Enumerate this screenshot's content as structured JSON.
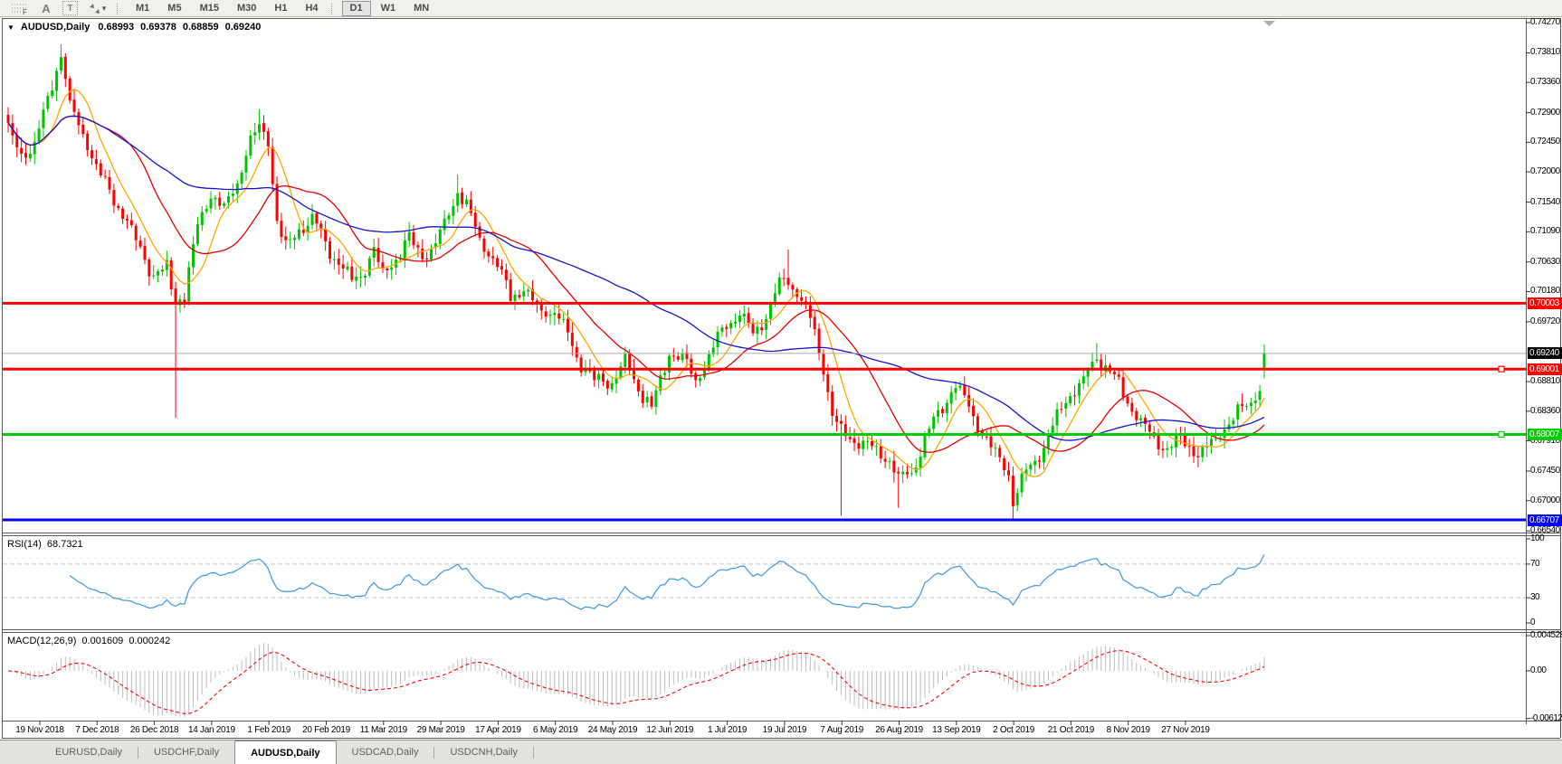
{
  "toolbar": {
    "tools": [
      {
        "name": "fibonacci-tool",
        "glyph": "F"
      },
      {
        "name": "text-label-tool",
        "glyph": "A"
      },
      {
        "name": "text-tool",
        "glyph": "T"
      },
      {
        "name": "arrows-tool",
        "glyph": "arrows"
      }
    ],
    "timeframes": [
      {
        "label": "M1",
        "active": false
      },
      {
        "label": "M5",
        "active": false
      },
      {
        "label": "M15",
        "active": false
      },
      {
        "label": "M30",
        "active": false
      },
      {
        "label": "H1",
        "active": false
      },
      {
        "label": "H4",
        "active": false
      },
      {
        "label": "D1",
        "active": true
      },
      {
        "label": "W1",
        "active": false
      },
      {
        "label": "MN",
        "active": false
      }
    ]
  },
  "chart_header": {
    "collapse_glyph": "▼",
    "symbol": "AUDUSD,Daily",
    "open": "0.68993",
    "high": "0.69378",
    "low": "0.68859",
    "close": "0.69240"
  },
  "price_axis": {
    "labels": [
      "0.74270",
      "0.73810",
      "0.73360",
      "0.72900",
      "0.72450",
      "0.72000",
      "0.71540",
      "0.71090",
      "0.70630",
      "0.70180",
      "0.69720",
      "0.68810",
      "0.68360",
      "0.67910",
      "0.67450",
      "0.67000",
      "0.66540"
    ]
  },
  "date_axis": {
    "labels": [
      "19 Nov 2018",
      "7 Dec 2018",
      "26 Dec 2018",
      "14 Jan 2019",
      "1 Feb 2019",
      "20 Feb 2019",
      "11 Mar 2019",
      "29 Mar 2019",
      "17 Apr 2019",
      "6 May 2019",
      "24 May 2019",
      "12 Jun 2019",
      "1 Jul 2019",
      "19 Jul 2019",
      "7 Aug 2019",
      "26 Aug 2019",
      "13 Sep 2019",
      "2 Oct 2019",
      "21 Oct 2019",
      "8 Nov 2019",
      "27 Nov 2019"
    ]
  },
  "badges": [
    {
      "name": "resistance-upper",
      "label": "0.70003",
      "price": 0.70003,
      "color": "#FF0000"
    },
    {
      "name": "current-price",
      "label": "0.69240",
      "price": 0.6924,
      "color": "#000000"
    },
    {
      "name": "resistance-lower",
      "label": "0.69001",
      "price": 0.69001,
      "color": "#FF0000"
    },
    {
      "name": "support-green",
      "label": "0.68007",
      "price": 0.68007,
      "color": "#00CC00"
    },
    {
      "name": "support-blue",
      "label": "0.66707",
      "price": 0.66707,
      "color": "#0000FF"
    }
  ],
  "rsi_panel": {
    "name": "RSI(14)",
    "value": "68.7321",
    "scale": [
      {
        "label": "100",
        "v": 100
      },
      {
        "label": "70",
        "v": 70
      },
      {
        "label": "30",
        "v": 30
      },
      {
        "label": "0",
        "v": 0
      }
    ],
    "levels": [
      70,
      30
    ]
  },
  "macd_panel": {
    "name": "MACD(12,26,9)",
    "value_main": "0.001609",
    "value_signal": "0.000242",
    "scale": [
      {
        "label": "0.004528",
        "v": 0.004528
      },
      {
        "label": "0.00",
        "v": 0
      },
      {
        "label": "-0.00612",
        "v": -0.00612
      }
    ]
  },
  "tabs": [
    {
      "label": "EURUSD,Daily",
      "active": false
    },
    {
      "label": "USDCHF,Daily",
      "active": false
    },
    {
      "label": "AUDUSD,Daily",
      "active": true
    },
    {
      "label": "USDCAD,Daily",
      "active": false
    },
    {
      "label": "USDCNH,Daily",
      "active": false
    }
  ],
  "chart_data": {
    "type": "candlestick",
    "symbol": "AUDUSD",
    "timeframe": "Daily",
    "bars": 286,
    "price_range": [
      0.6654,
      0.7427
    ],
    "anchors": [
      [
        0,
        0.7262
      ],
      [
        3,
        0.7228
      ],
      [
        6,
        0.7235
      ],
      [
        9,
        0.731
      ],
      [
        12,
        0.738
      ],
      [
        14,
        0.7298
      ],
      [
        17,
        0.7262
      ],
      [
        20,
        0.7205
      ],
      [
        23,
        0.7172
      ],
      [
        26,
        0.7135
      ],
      [
        30,
        0.7085
      ],
      [
        33,
        0.7042
      ],
      [
        36,
        0.7052
      ],
      [
        38,
        0.7005
      ],
      [
        40,
        0.7012
      ],
      [
        43,
        0.7118
      ],
      [
        46,
        0.7168
      ],
      [
        49,
        0.7142
      ],
      [
        52,
        0.7188
      ],
      [
        55,
        0.7248
      ],
      [
        57,
        0.7268
      ],
      [
        59,
        0.7248
      ],
      [
        61,
        0.7125
      ],
      [
        63,
        0.7082
      ],
      [
        66,
        0.7112
      ],
      [
        69,
        0.7128
      ],
      [
        72,
        0.7092
      ],
      [
        75,
        0.7062
      ],
      [
        78,
        0.7032
      ],
      [
        81,
        0.7052
      ],
      [
        83,
        0.7078
      ],
      [
        85,
        0.7045
      ],
      [
        88,
        0.7068
      ],
      [
        91,
        0.7098
      ],
      [
        94,
        0.7072
      ],
      [
        97,
        0.7088
      ],
      [
        100,
        0.7138
      ],
      [
        102,
        0.7172
      ],
      [
        104,
        0.7148
      ],
      [
        107,
        0.7098
      ],
      [
        111,
        0.7058
      ],
      [
        114,
        0.7012
      ],
      [
        117,
        0.7022
      ],
      [
        120,
        0.6992
      ],
      [
        124,
        0.6988
      ],
      [
        127,
        0.6952
      ],
      [
        130,
        0.6905
      ],
      [
        133,
        0.6882
      ],
      [
        137,
        0.6882
      ],
      [
        140,
        0.6912
      ],
      [
        143,
        0.6872
      ],
      [
        146,
        0.6842
      ],
      [
        149,
        0.6902
      ],
      [
        150,
        0.6928
      ],
      [
        153,
        0.6918
      ],
      [
        156,
        0.6882
      ],
      [
        159,
        0.6922
      ],
      [
        162,
        0.6958
      ],
      [
        163,
        0.6968
      ],
      [
        166,
        0.6988
      ],
      [
        169,
        0.6952
      ],
      [
        172,
        0.6982
      ],
      [
        175,
        0.7028
      ],
      [
        176,
        0.7038
      ],
      [
        179,
        0.7018
      ],
      [
        182,
        0.6978
      ],
      [
        185,
        0.6902
      ],
      [
        187,
        0.6832
      ],
      [
        189,
        0.6802
      ],
      [
        192,
        0.6792
      ],
      [
        195,
        0.6782
      ],
      [
        198,
        0.6772
      ],
      [
        200,
        0.6762
      ],
      [
        202,
        0.6732
      ],
      [
        205,
        0.6742
      ],
      [
        208,
        0.6792
      ],
      [
        211,
        0.6832
      ],
      [
        214,
        0.6868
      ],
      [
        215,
        0.6878
      ],
      [
        218,
        0.6842
      ],
      [
        221,
        0.6802
      ],
      [
        224,
        0.6772
      ],
      [
        227,
        0.6742
      ],
      [
        228,
        0.6702
      ],
      [
        231,
        0.6742
      ],
      [
        234,
        0.6772
      ],
      [
        237,
        0.6812
      ],
      [
        240,
        0.6852
      ],
      [
        241,
        0.6862
      ],
      [
        244,
        0.6882
      ],
      [
        247,
        0.6918
      ],
      [
        250,
        0.6898
      ],
      [
        253,
        0.6862
      ],
      [
        254,
        0.6852
      ],
      [
        257,
        0.6822
      ],
      [
        260,
        0.6792
      ],
      [
        263,
        0.6782
      ],
      [
        266,
        0.6792
      ],
      [
        270,
        0.6772
      ],
      [
        273,
        0.6782
      ],
      [
        276,
        0.6812
      ],
      [
        279,
        0.6832
      ],
      [
        282,
        0.6852
      ],
      [
        284,
        0.6872
      ],
      [
        285,
        0.6924
      ]
    ],
    "wick_events": [
      {
        "i": 12,
        "high": 0.7394
      },
      {
        "i": 38,
        "low": 0.6826
      },
      {
        "i": 57,
        "high": 0.7295
      },
      {
        "i": 102,
        "high": 0.7196
      },
      {
        "i": 177,
        "high": 0.7082
      },
      {
        "i": 189,
        "low": 0.6677
      },
      {
        "i": 202,
        "low": 0.6689
      },
      {
        "i": 228,
        "low": 0.6671
      },
      {
        "i": 247,
        "high": 0.694
      }
    ],
    "last_bar": {
      "open": 0.68993,
      "high": 0.69378,
      "low": 0.68859,
      "close": 0.6924
    },
    "moving_averages": [
      {
        "period": 8,
        "color": "#FFA500"
      },
      {
        "period": 21,
        "color": "#E00000"
      },
      {
        "period": 55,
        "color": "#1414C8"
      }
    ],
    "hlines": [
      {
        "price": 0.70003,
        "color": "#FF0000",
        "width": 3,
        "handle": false
      },
      {
        "price": 0.69001,
        "color": "#FF0000",
        "width": 3,
        "handle": true
      },
      {
        "price": 0.68007,
        "color": "#00CC00",
        "width": 3,
        "handle": true
      },
      {
        "price": 0.66707,
        "color": "#0000FF",
        "width": 3,
        "handle": false
      }
    ],
    "current_price": 0.6924,
    "style": {
      "bull": "#00C400",
      "bear": "#FF0000",
      "rsi_line": "#3E97E0",
      "macd_hist": "#BDBDBD",
      "macd_signal": "#FF0000",
      "level_dash": "#C4C4C4",
      "price_line": "#ABABAB",
      "border": "#5a5a5a"
    },
    "indicators": [
      {
        "type": "RSI",
        "period": 14,
        "current": 68.7321
      },
      {
        "type": "MACD",
        "fast": 12,
        "slow": 26,
        "signal": 9,
        "current_main": 0.001609,
        "current_signal": 0.000242
      }
    ]
  }
}
